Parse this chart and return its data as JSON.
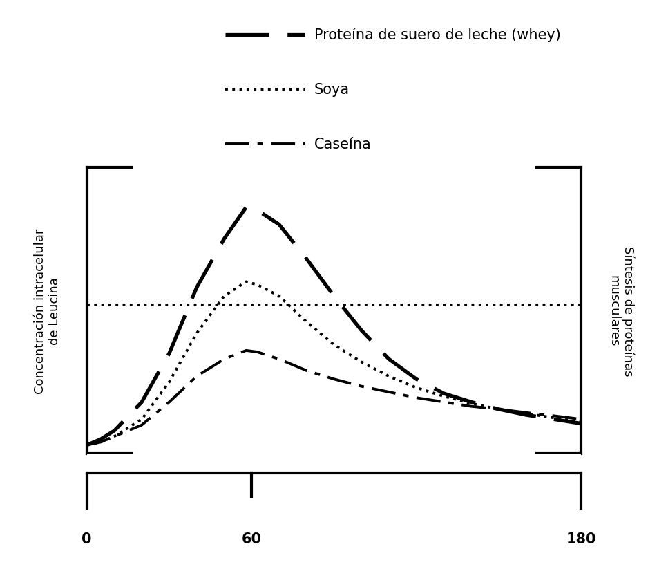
{
  "title": "",
  "ylabel_left": "Concentración intracelular\nde Leucina",
  "ylabel_right": "Síntesis de proteínas\nmusculares",
  "x_ticks_labels": [
    "0",
    "60",
    "180"
  ],
  "x_ticks_vals": [
    0,
    60,
    180
  ],
  "xlim": [
    0,
    180
  ],
  "ylim": [
    0,
    10
  ],
  "soya_hline": 5.2,
  "whey": {
    "x": [
      0,
      5,
      10,
      20,
      30,
      40,
      50,
      58,
      62,
      70,
      80,
      90,
      100,
      110,
      120,
      130,
      140,
      150,
      160,
      170,
      180
    ],
    "y": [
      0.3,
      0.5,
      0.8,
      1.8,
      3.5,
      5.8,
      7.5,
      8.6,
      8.5,
      8.0,
      6.8,
      5.5,
      4.3,
      3.3,
      2.6,
      2.1,
      1.8,
      1.55,
      1.35,
      1.2,
      1.05
    ],
    "label": "Proteína de suero de leche (whey)",
    "linewidth": 3.8,
    "color": "#000000",
    "dashes": [
      12,
      5
    ]
  },
  "soya": {
    "x": [
      0,
      5,
      10,
      20,
      30,
      40,
      50,
      58,
      62,
      70,
      80,
      90,
      100,
      110,
      120,
      130,
      140,
      150,
      160,
      170,
      180
    ],
    "y": [
      0.3,
      0.4,
      0.6,
      1.2,
      2.5,
      4.2,
      5.5,
      6.0,
      5.9,
      5.5,
      4.6,
      3.8,
      3.2,
      2.7,
      2.3,
      2.0,
      1.75,
      1.55,
      1.4,
      1.25,
      1.1
    ],
    "label": "Soya",
    "linewidth": 2.8,
    "color": "#000000"
  },
  "caseina": {
    "x": [
      0,
      5,
      10,
      20,
      30,
      40,
      50,
      58,
      62,
      70,
      80,
      90,
      100,
      110,
      120,
      130,
      140,
      150,
      160,
      170,
      180
    ],
    "y": [
      0.3,
      0.4,
      0.6,
      1.0,
      1.8,
      2.7,
      3.3,
      3.6,
      3.55,
      3.3,
      2.9,
      2.6,
      2.35,
      2.15,
      1.95,
      1.8,
      1.65,
      1.55,
      1.43,
      1.32,
      1.2
    ],
    "label": "Caseína",
    "linewidth": 2.8,
    "color": "#000000"
  },
  "background_color": "#ffffff",
  "font_color": "#000000",
  "font_size": 13,
  "legend_fontsize": 15,
  "bracket_lw": 3.0
}
